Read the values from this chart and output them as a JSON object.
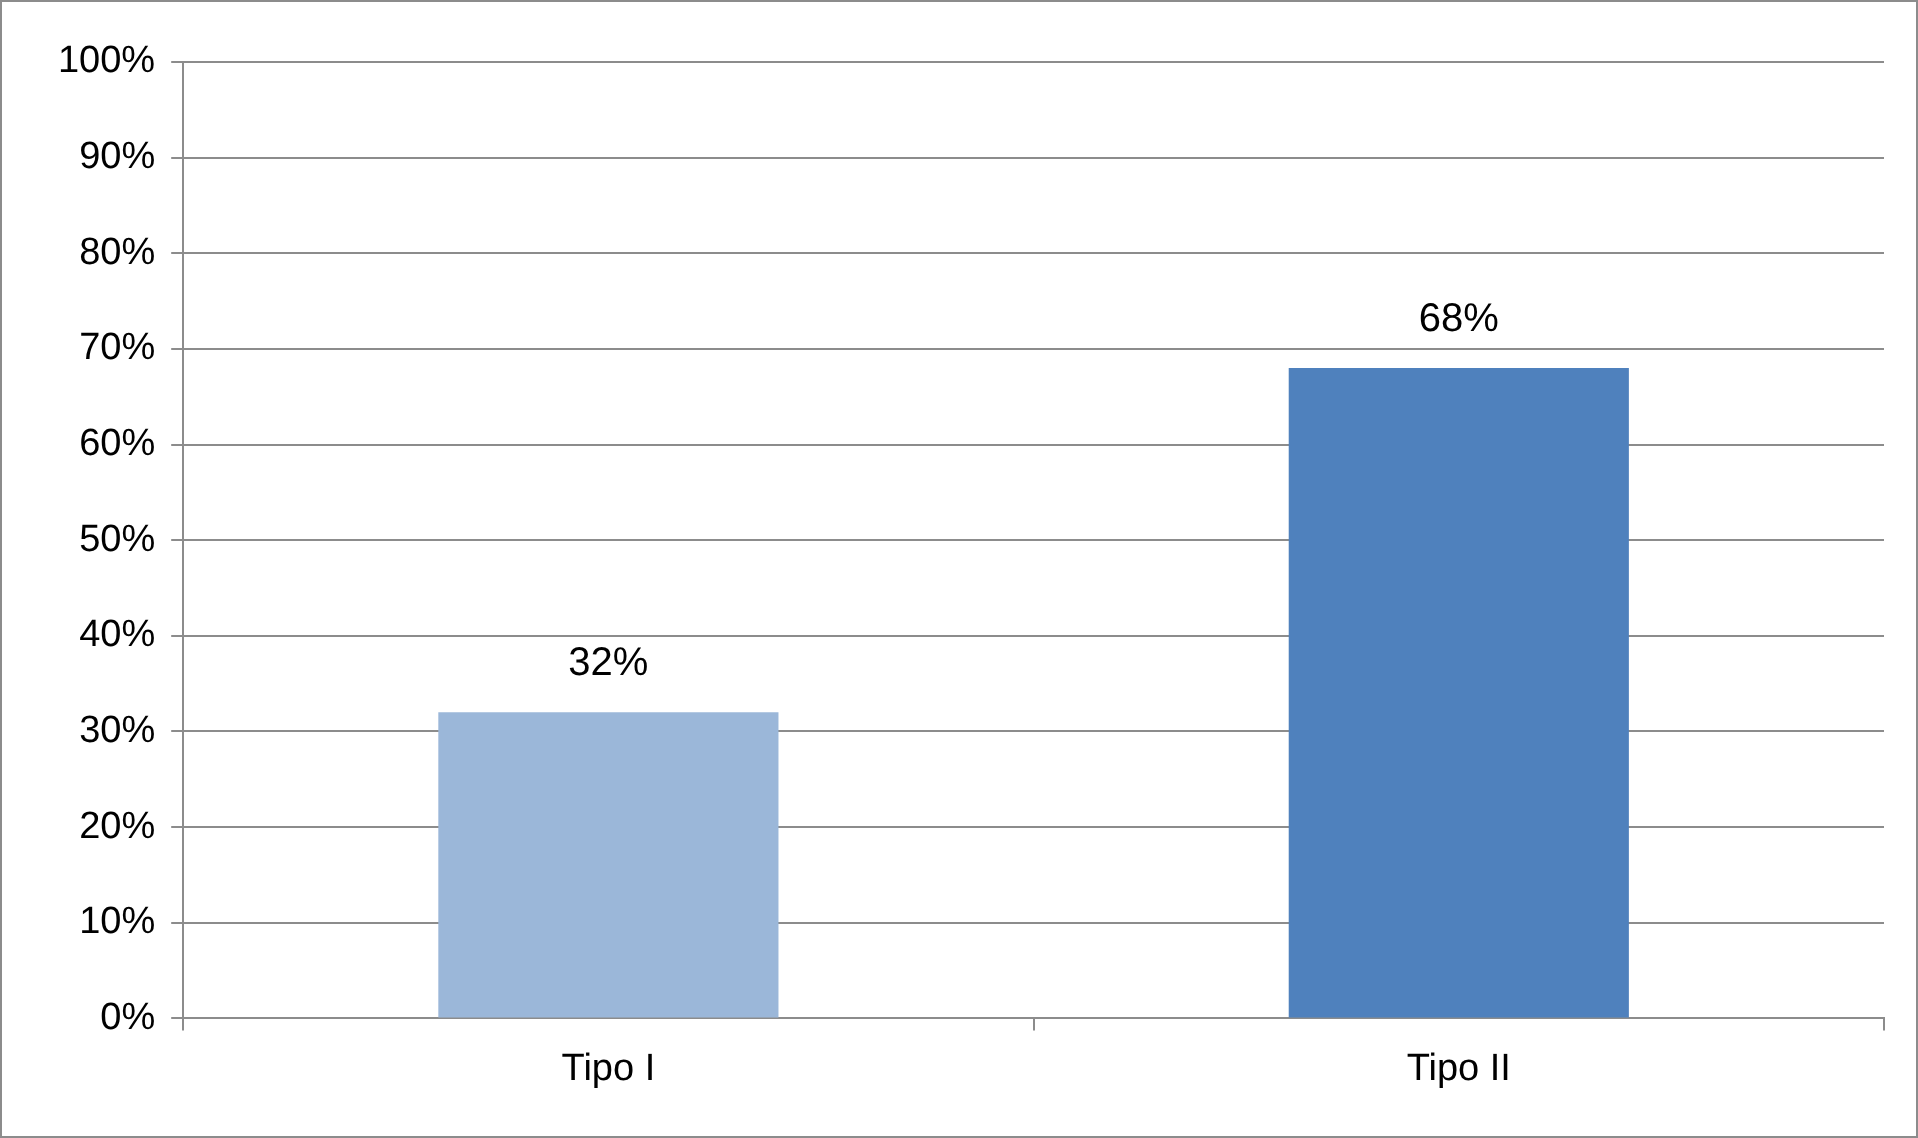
{
  "chart_data": {
    "type": "bar",
    "categories": [
      "Tipo I",
      "Tipo II"
    ],
    "values": [
      32,
      68
    ],
    "colors": [
      "#9bb7d9",
      "#4f81bd"
    ],
    "value_labels": [
      "32%",
      "68%"
    ],
    "ylim": [
      0,
      100
    ],
    "yticks": [
      {
        "value": 0,
        "label": "0%"
      },
      {
        "value": 10,
        "label": "10%"
      },
      {
        "value": 20,
        "label": "20%"
      },
      {
        "value": 30,
        "label": "30%"
      },
      {
        "value": 40,
        "label": "40%"
      },
      {
        "value": 50,
        "label": "50%"
      },
      {
        "value": 60,
        "label": "60%"
      },
      {
        "value": 70,
        "label": "70%"
      },
      {
        "value": 80,
        "label": "80%"
      },
      {
        "value": 90,
        "label": "90%"
      },
      {
        "value": 100,
        "label": "100%"
      }
    ],
    "grid": "y",
    "legend": false
  }
}
